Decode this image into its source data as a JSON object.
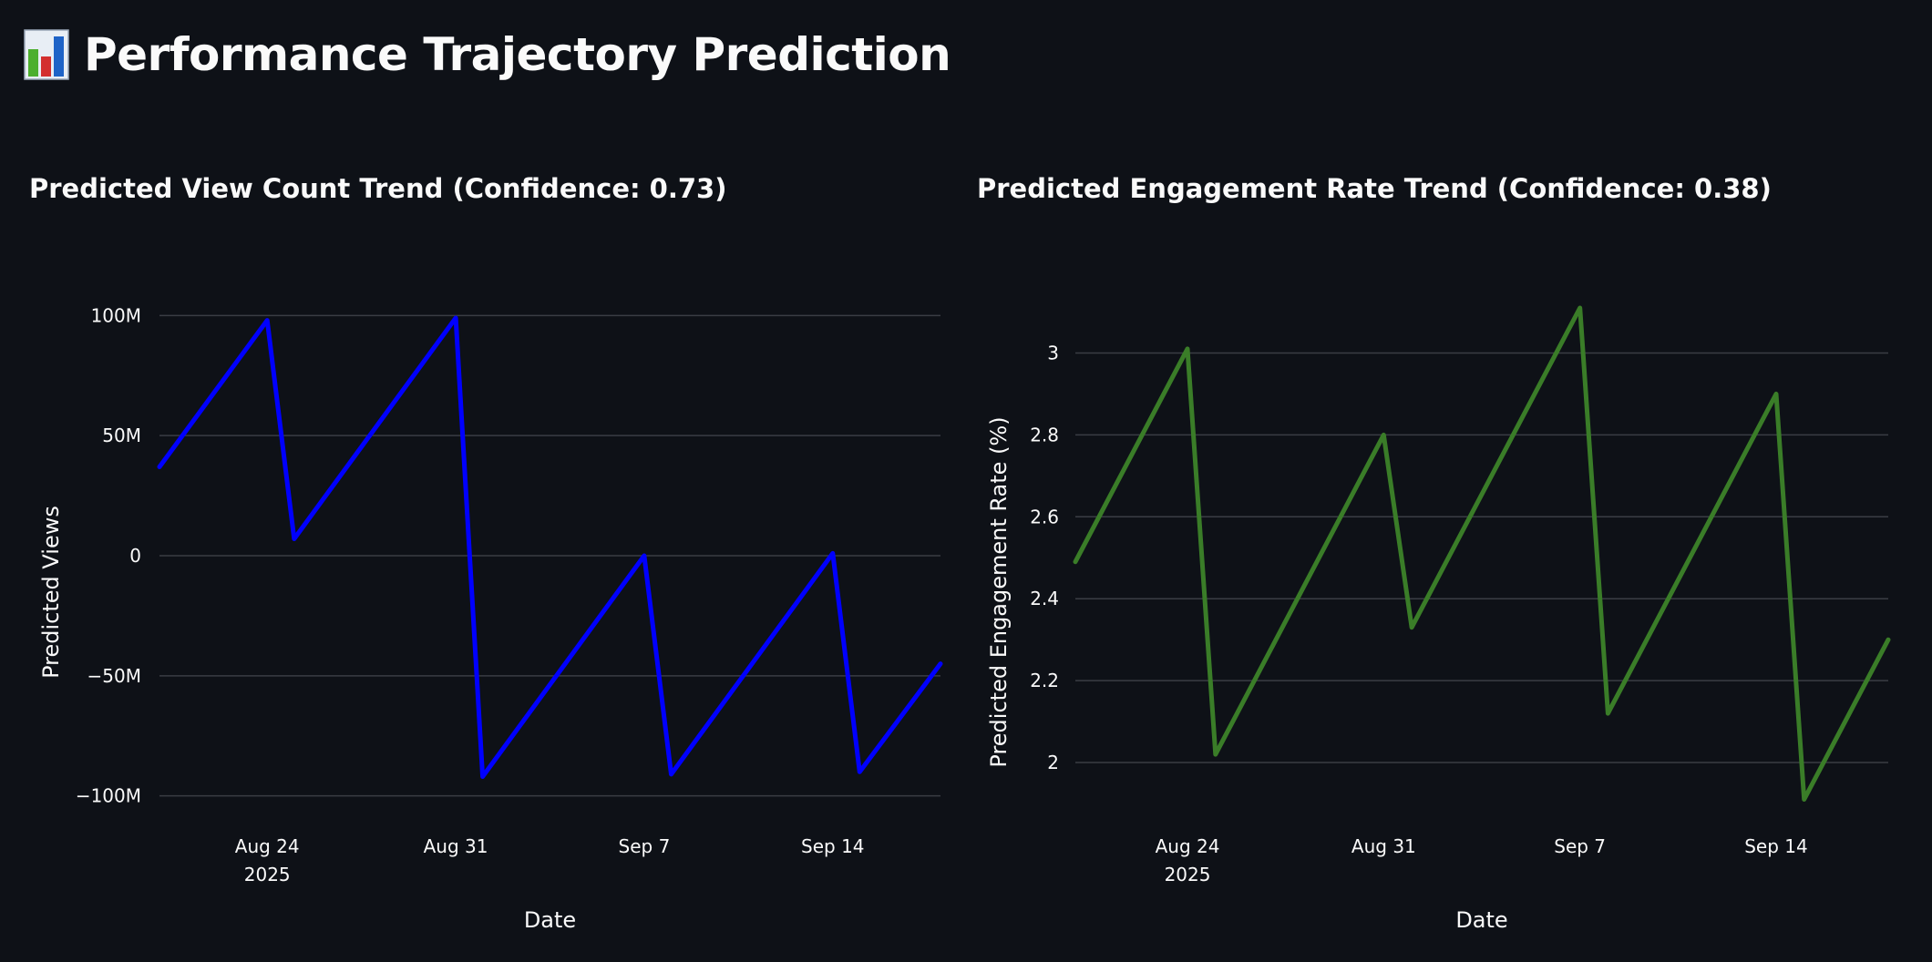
{
  "page": {
    "title": "Performance Trajectory Prediction",
    "title_icon": "bar-chart-icon"
  },
  "chart_data": [
    {
      "type": "line",
      "title": "Predicted View Count Trend (Confidence: 0.73)",
      "xlabel": "Date",
      "ylabel": "Predicted Views",
      "x_ticks": [
        {
          "date": "2025-08-24",
          "label": "Aug 24",
          "sublabel": "2025"
        },
        {
          "date": "2025-08-31",
          "label": "Aug 31",
          "sublabel": ""
        },
        {
          "date": "2025-09-07",
          "label": "Sep 7",
          "sublabel": ""
        },
        {
          "date": "2025-09-14",
          "label": "Sep 14",
          "sublabel": ""
        }
      ],
      "y_ticks": [
        {
          "value": 100000000,
          "label": "100M"
        },
        {
          "value": 50000000,
          "label": "50M"
        },
        {
          "value": 0,
          "label": "0"
        },
        {
          "value": -50000000,
          "label": "−50M"
        },
        {
          "value": -100000000,
          "label": "−100M"
        }
      ],
      "xlim": [
        "2025-08-20",
        "2025-09-18"
      ],
      "ylim": [
        -110000000,
        110000000
      ],
      "grid": true,
      "series": [
        {
          "color": "#0000ff",
          "x": [
            "2025-08-20",
            "2025-08-24",
            "2025-08-25",
            "2025-08-31",
            "2025-09-01",
            "2025-09-07",
            "2025-09-08",
            "2025-09-14",
            "2025-09-15",
            "2025-09-18"
          ],
          "y": [
            37000000,
            98000000,
            7000000,
            99000000,
            -92000000,
            0,
            -91000000,
            1000000,
            -90000000,
            -45000000
          ]
        }
      ]
    },
    {
      "type": "line",
      "title": "Predicted Engagement Rate Trend (Confidence: 0.38)",
      "xlabel": "Date",
      "ylabel": "Predicted Engagement Rate (%)",
      "x_ticks": [
        {
          "date": "2025-08-24",
          "label": "Aug 24",
          "sublabel": "2025"
        },
        {
          "date": "2025-08-31",
          "label": "Aug 31",
          "sublabel": ""
        },
        {
          "date": "2025-09-07",
          "label": "Sep 7",
          "sublabel": ""
        },
        {
          "date": "2025-09-14",
          "label": "Sep 14",
          "sublabel": ""
        }
      ],
      "y_ticks": [
        {
          "value": 3.0,
          "label": "3"
        },
        {
          "value": 2.8,
          "label": "2.8"
        },
        {
          "value": 2.6,
          "label": "2.6"
        },
        {
          "value": 2.4,
          "label": "2.4"
        },
        {
          "value": 2.2,
          "label": "2.2"
        },
        {
          "value": 2.0,
          "label": "2"
        }
      ],
      "xlim": [
        "2025-08-20",
        "2025-09-18"
      ],
      "ylim": [
        1.86,
        3.15
      ],
      "grid": true,
      "series": [
        {
          "color": "#3a7d28",
          "x": [
            "2025-08-20",
            "2025-08-24",
            "2025-08-25",
            "2025-08-31",
            "2025-09-01",
            "2025-09-07",
            "2025-09-08",
            "2025-09-14",
            "2025-09-15",
            "2025-09-18"
          ],
          "y": [
            2.49,
            3.01,
            2.02,
            2.8,
            2.33,
            3.11,
            2.12,
            2.9,
            1.91,
            2.3
          ]
        }
      ]
    }
  ]
}
